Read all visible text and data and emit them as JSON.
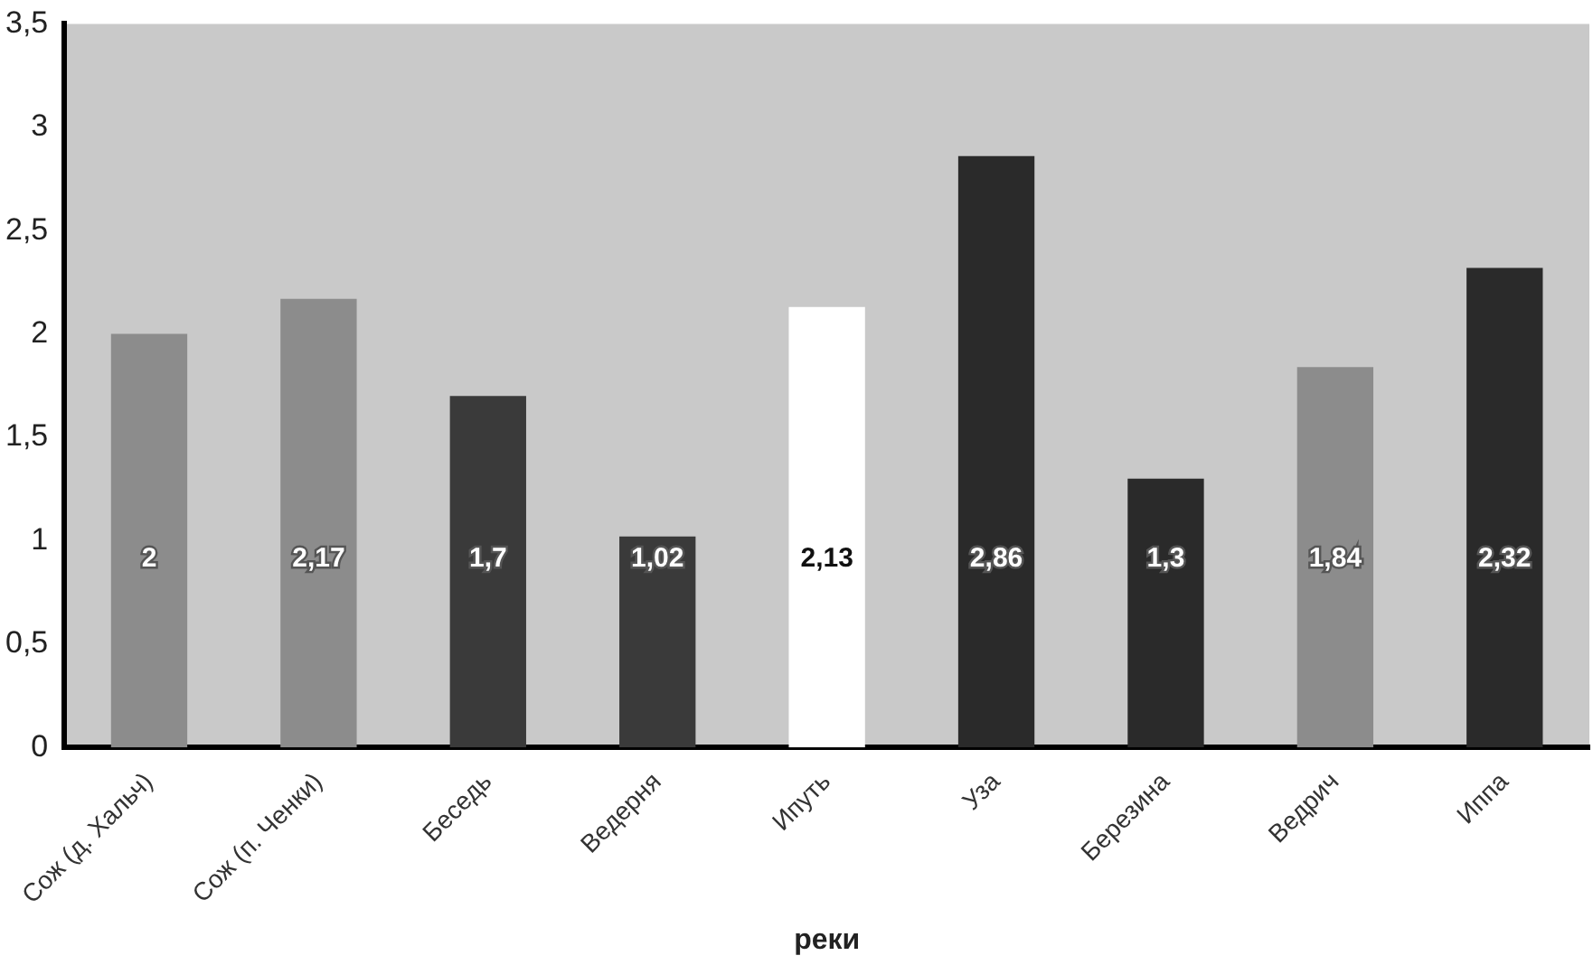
{
  "chart_data": {
    "type": "bar",
    "xlabel": "реки",
    "categories": [
      "Сож (д. Хальч)",
      "Сож (п. Ченки)",
      "Беседь",
      "Ведерня",
      "Ипуть",
      "Уза",
      "Березина",
      "Ведрич",
      "Иппа"
    ],
    "values": [
      2,
      2.17,
      1.7,
      1.02,
      2.13,
      2.86,
      1.3,
      1.84,
      2.32
    ],
    "colors": [
      "#8c8c8c",
      "#8c8c8c",
      "#3a3a3a",
      "#3a3a3a",
      "#ffffff",
      "#2a2a2a",
      "#2a2a2a",
      "#8c8c8c",
      "#2a2a2a"
    ],
    "value_labels": [
      "2",
      "2,17",
      "1,7",
      "1,02",
      "2,13",
      "2,86",
      "1,3",
      "1,84",
      "2,32"
    ],
    "ylim": [
      0,
      3.5
    ],
    "yticks": [
      0,
      {
        "value": 0.5,
        "label": "0,5"
      },
      1,
      {
        "value": 1.5,
        "label": "1,5"
      },
      2,
      {
        "value": 2.5,
        "label": "2,5"
      },
      3,
      {
        "value": 3.5,
        "label": "3,5"
      }
    ],
    "grid": false,
    "legend": false
  }
}
